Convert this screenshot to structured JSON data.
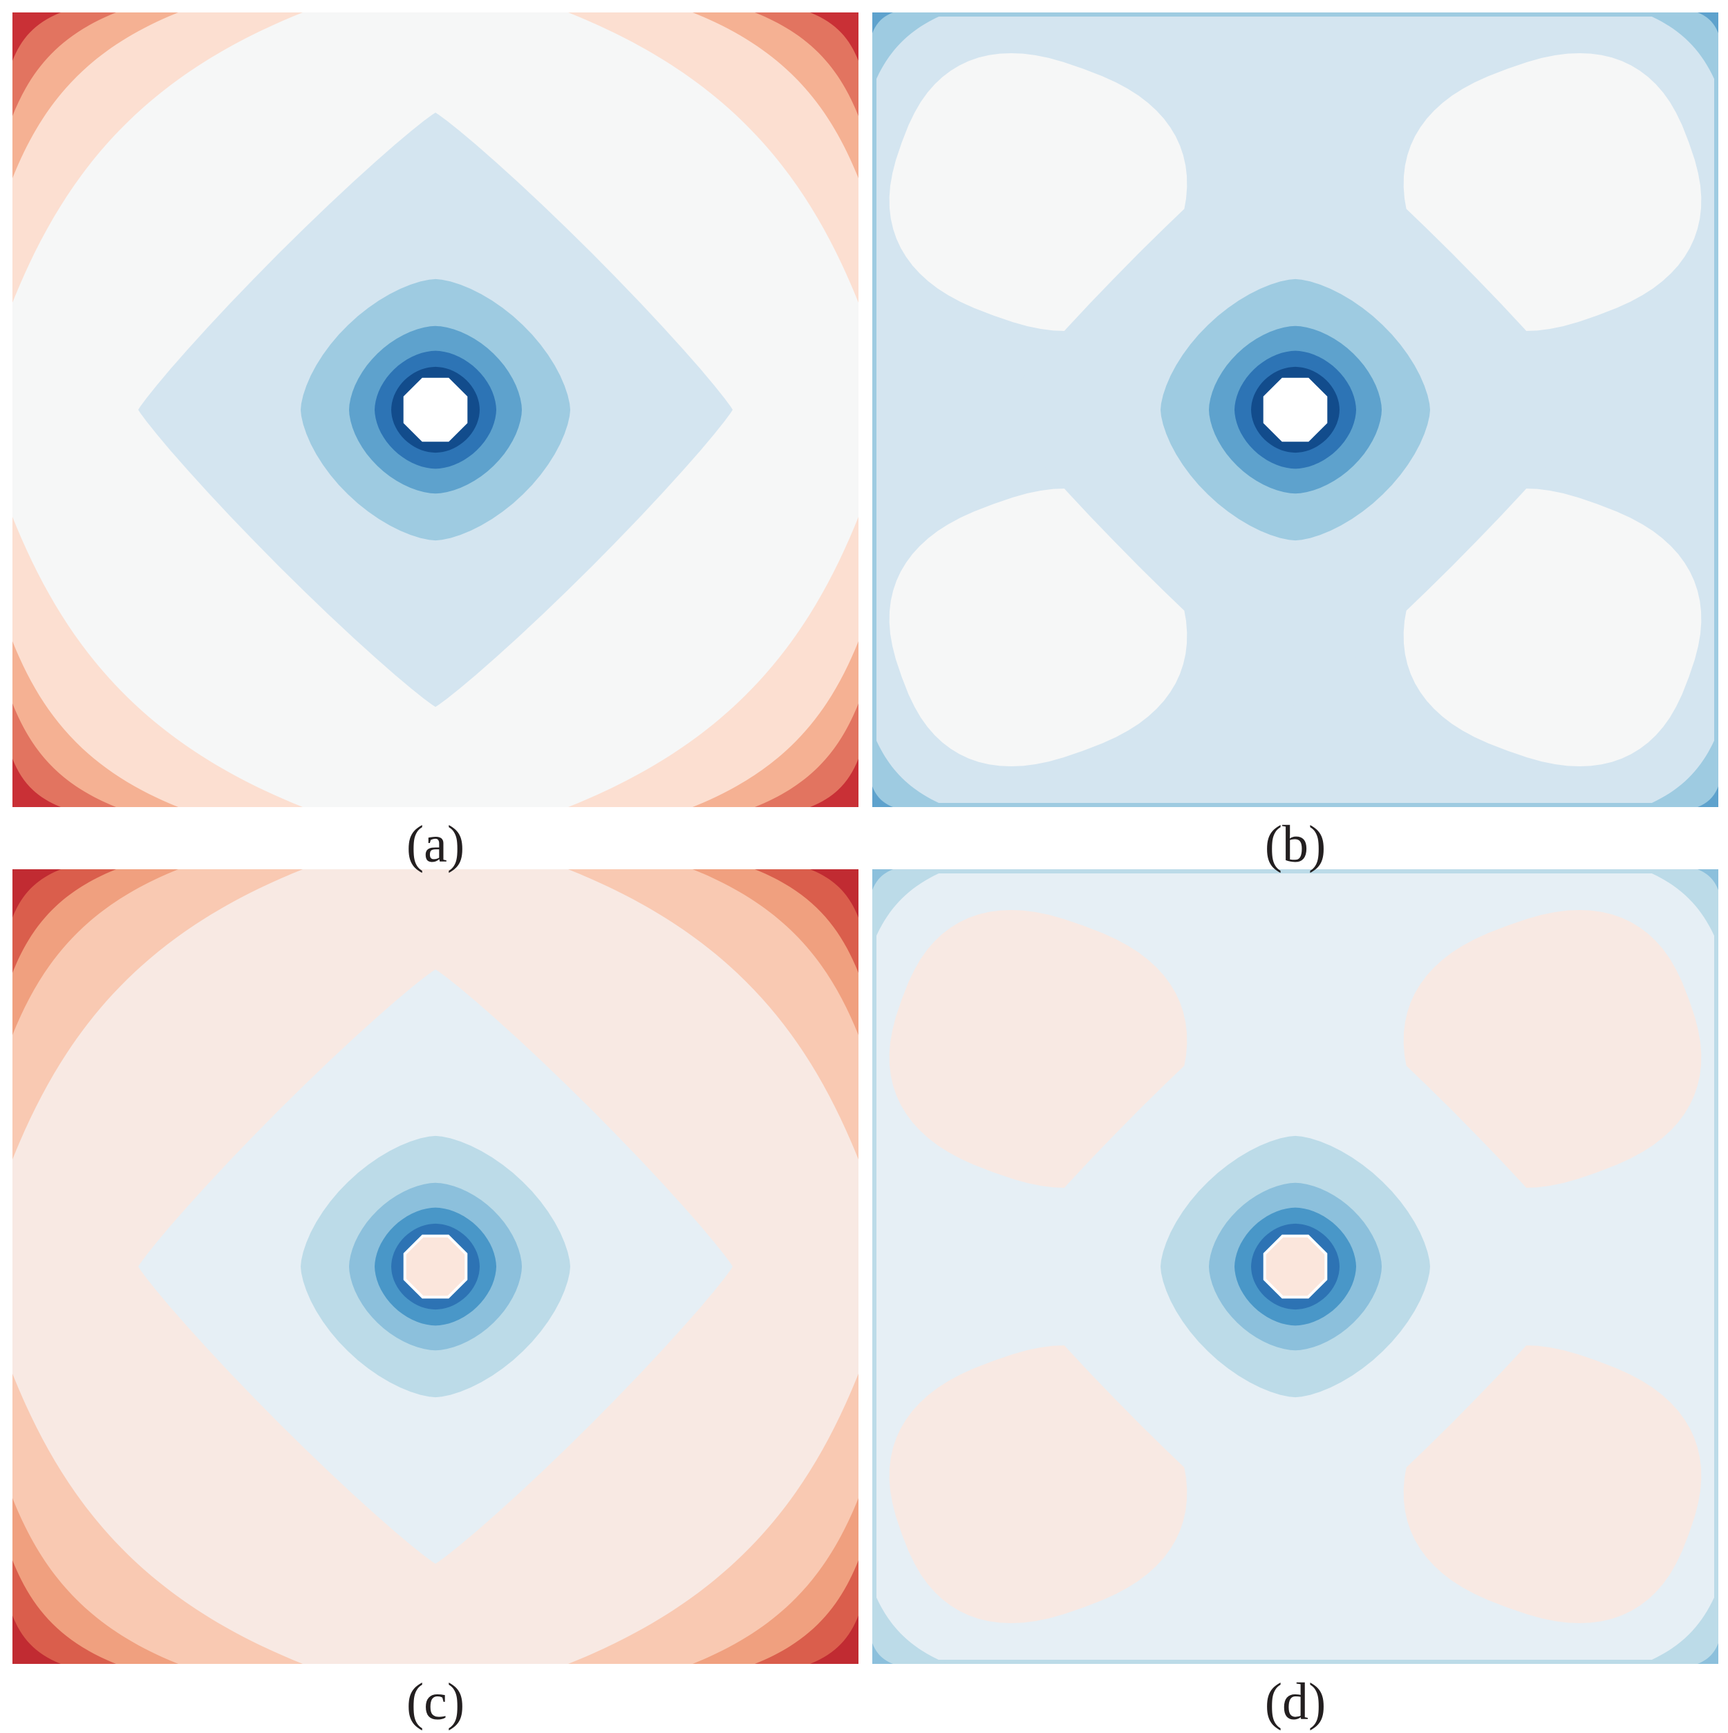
{
  "chart_data": [
    {
      "type": "contour",
      "panel_label": "(a)",
      "colors": {
        "background": "#f6f7f7",
        "corner_levels": [
          "#fcdfd1",
          "#f5b193",
          "#e27460",
          "#c93036"
        ],
        "center_levels": [
          "#d4e5f0",
          "#9ecbe1",
          "#5ea2cd",
          "#2d74b5",
          "#124c8c"
        ],
        "hole": "#ffffff"
      },
      "lobes": false
    },
    {
      "type": "contour",
      "panel_label": "(b)",
      "colors": {
        "background": "#d4e5f0",
        "edge_level": "#9ecbe1",
        "edge_dark": "#5ea2cd",
        "lobe": "#f6f7f7",
        "center_levels": [
          "#d4e5f0",
          "#9ecbe1",
          "#5ea2cd",
          "#2d74b5",
          "#124c8c"
        ],
        "hole": "#ffffff"
      },
      "lobes": true
    },
    {
      "type": "contour",
      "panel_label": "(c)",
      "colors": {
        "background": "#f8e9e3",
        "corner_levels": [
          "#f9c9b2",
          "#f0a07f",
          "#da5e4c",
          "#c12b32"
        ],
        "center_levels": [
          "#e6eff5",
          "#bcdbe8",
          "#8cc0dc",
          "#4997c8",
          "#2d73b4"
        ],
        "hole": "#fbe6dc"
      },
      "lobes": false
    },
    {
      "type": "contour",
      "panel_label": "(d)",
      "colors": {
        "background": "#e6eff5",
        "edge_level": "#bcdbe8",
        "edge_dark": "#8cc0dc",
        "lobe": "#f8e9e3",
        "center_levels": [
          "#e6eff5",
          "#bcdbe8",
          "#8cc0dc",
          "#4997c8",
          "#2d73b4"
        ],
        "hole": "#fbe6dc"
      },
      "lobes": true
    }
  ]
}
